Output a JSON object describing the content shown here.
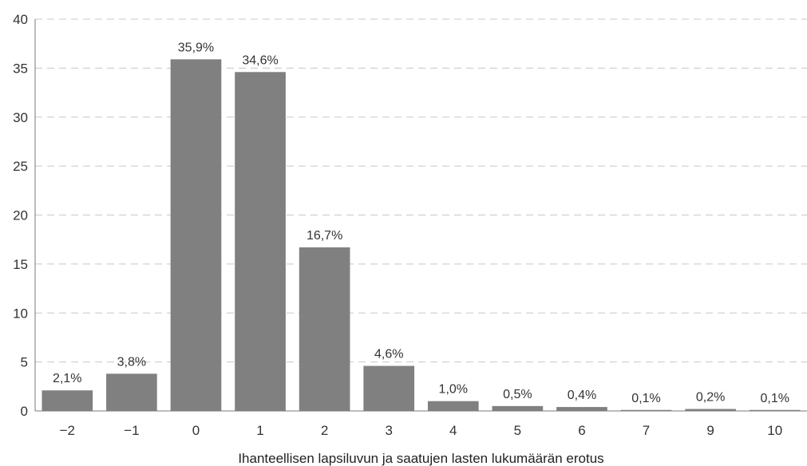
{
  "chart_data": {
    "type": "bar",
    "categories": [
      "−2",
      "−1",
      "0",
      "1",
      "2",
      "3",
      "4",
      "5",
      "6",
      "7",
      "9",
      "10"
    ],
    "values": [
      2.1,
      3.8,
      35.9,
      34.6,
      16.7,
      4.6,
      1.0,
      0.5,
      0.4,
      0.1,
      0.2,
      0.1
    ],
    "data_labels": [
      "2,1%",
      "3,8%",
      "35,9%",
      "34,6%",
      "16,7%",
      "4,6%",
      "1,0%",
      "0,5%",
      "0,4%",
      "0,1%",
      "0,2%",
      "0,1%"
    ],
    "y_ticks": [
      0,
      5,
      10,
      15,
      20,
      25,
      30,
      35,
      40
    ],
    "ylim": [
      0,
      40
    ],
    "title": "",
    "xlabel": "Ihanteellisen lapsiluvun ja saatujen lasten lukumäärän erotus",
    "ylabel": "",
    "grid": true,
    "legend": "none",
    "colors": {
      "bar": "#808080",
      "grid": "#c8c8c8",
      "axis": "#7a7a7a",
      "text": "#333333"
    }
  }
}
